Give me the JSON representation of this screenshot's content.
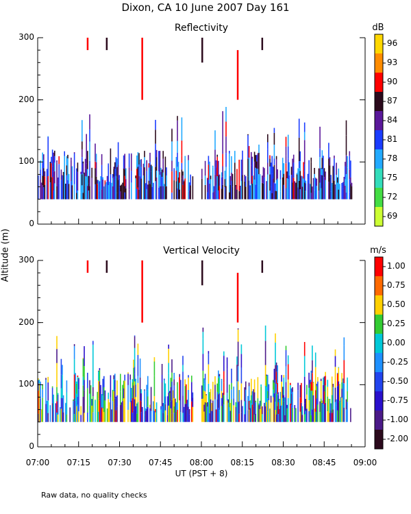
{
  "title": "Dixon, CA 10 June 2007  Day 161",
  "ylabel": "Altitude (m)",
  "xlabel": "UT  (PST + 8)",
  "footnote": "Raw data, no quality checks",
  "x_ticks": [
    "07:00",
    "07:15",
    "07:30",
    "07:45",
    "08:00",
    "08:15",
    "08:30",
    "08:45",
    "09:00"
  ],
  "y_ticks": [
    0,
    100,
    200,
    300
  ],
  "chart_data": [
    {
      "type": "heatmap",
      "title": "Reflectivity",
      "colorbar_unit": "dB",
      "xlim": [
        "07:00",
        "09:00"
      ],
      "ylim": [
        0,
        300
      ],
      "colorbar": [
        {
          "label": "96",
          "color": "#ffd700"
        },
        {
          "label": "93",
          "color": "#ff8c00"
        },
        {
          "label": "90",
          "color": "#ff0000"
        },
        {
          "label": "87",
          "color": "#2b0a1c"
        },
        {
          "label": "84",
          "color": "#5a189a"
        },
        {
          "label": "81",
          "color": "#1a3cff"
        },
        {
          "label": "78",
          "color": "#22aaff"
        },
        {
          "label": "75",
          "color": "#33ddbb"
        },
        {
          "label": "72",
          "color": "#44dd44"
        },
        {
          "label": "69",
          "color": "#ccff33"
        }
      ],
      "echo_regions": [
        {
          "start": "07:00",
          "end": "07:57",
          "min_alt": 40,
          "max_alt": 180
        },
        {
          "start": "08:00",
          "end": "08:28",
          "min_alt": 40,
          "max_alt": 200
        },
        {
          "start": "08:28",
          "end": "08:55",
          "min_alt": 40,
          "max_alt": 180
        }
      ],
      "high_echoes": [
        {
          "time": "07:18",
          "min_alt": 280,
          "max_alt": 300
        },
        {
          "time": "07:25",
          "min_alt": 280,
          "max_alt": 300
        },
        {
          "time": "07:38",
          "min_alt": 200,
          "max_alt": 300
        },
        {
          "time": "08:00",
          "min_alt": 260,
          "max_alt": 300
        },
        {
          "time": "08:13",
          "min_alt": 200,
          "max_alt": 280
        },
        {
          "time": "08:22",
          "min_alt": 280,
          "max_alt": 300
        }
      ]
    },
    {
      "type": "heatmap",
      "title": "Vertical Velocity",
      "colorbar_unit": "m/s",
      "xlim": [
        "07:00",
        "09:00"
      ],
      "ylim": [
        0,
        300
      ],
      "colorbar": [
        {
          "label": "1.00",
          "color": "#ff0000"
        },
        {
          "label": "0.75",
          "color": "#ff6a00"
        },
        {
          "label": "0.50",
          "color": "#ffd000"
        },
        {
          "label": "0.25",
          "color": "#33cc33"
        },
        {
          "label": "0.00",
          "color": "#00c8d8"
        },
        {
          "label": "-0.25",
          "color": "#1e90ff"
        },
        {
          "label": "-0.50",
          "color": "#2244ee"
        },
        {
          "label": "-0.75",
          "color": "#2a10cc"
        },
        {
          "label": "-1.00",
          "color": "#4b1a88"
        },
        {
          "label": "-2.00",
          "color": "#2b0a1c"
        }
      ],
      "echo_regions": [
        {
          "start": "07:00",
          "end": "07:57",
          "min_alt": 40,
          "max_alt": 180
        },
        {
          "start": "08:00",
          "end": "08:28",
          "min_alt": 40,
          "max_alt": 200
        },
        {
          "start": "08:28",
          "end": "08:55",
          "min_alt": 40,
          "max_alt": 180
        }
      ],
      "high_echoes": [
        {
          "time": "07:18",
          "min_alt": 280,
          "max_alt": 300
        },
        {
          "time": "07:25",
          "min_alt": 280,
          "max_alt": 300
        },
        {
          "time": "07:38",
          "min_alt": 200,
          "max_alt": 300
        },
        {
          "time": "08:00",
          "min_alt": 260,
          "max_alt": 300
        },
        {
          "time": "08:13",
          "min_alt": 200,
          "max_alt": 280
        },
        {
          "time": "08:22",
          "min_alt": 280,
          "max_alt": 300
        }
      ]
    }
  ]
}
